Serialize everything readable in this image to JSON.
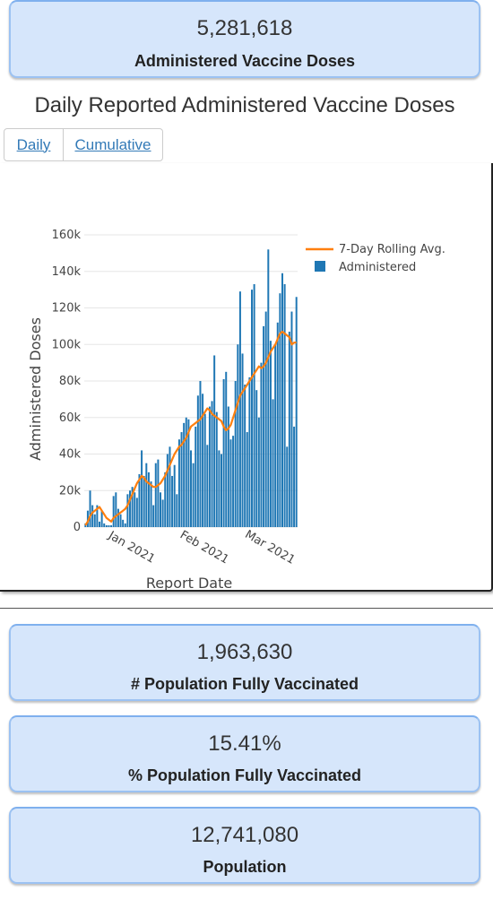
{
  "cards": {
    "administered": {
      "value": "5,281,618",
      "label": "Administered Vaccine Doses"
    },
    "fully_vaccinated": {
      "value": "1,963,630",
      "label": "# Population Fully Vaccinated"
    },
    "pct_fully_vaccinated": {
      "value": "15.41%",
      "label": "% Population Fully Vaccinated"
    },
    "population": {
      "value": "12,741,080",
      "label": "Population"
    }
  },
  "chart_title": "Daily Reported Administered Vaccine Doses",
  "tabs": {
    "daily": "Daily",
    "cumulative": "Cumulative"
  },
  "colors": {
    "bar": "#1f77b4",
    "line": "#ff7f0e",
    "card_bg": "#d6e6fb",
    "card_border": "#9cc2f2",
    "link": "#337ab7"
  },
  "chart_data": {
    "type": "bar",
    "xlabel": "Report Date",
    "ylabel": "Administered Doses",
    "ylim": [
      0,
      160000
    ],
    "y_ticks": [
      0,
      20000,
      40000,
      60000,
      80000,
      100000,
      120000,
      140000,
      160000
    ],
    "y_tick_labels": [
      "0",
      "20k",
      "40k",
      "60k",
      "80k",
      "100k",
      "120k",
      "140k",
      "160k"
    ],
    "x_tick_labels": [
      "Jan 2021",
      "Feb 2021",
      "Mar 2021"
    ],
    "x_tick_positions": [
      19,
      50,
      78
    ],
    "grid": true,
    "legend": [
      "7-Day Rolling Avg.",
      "Administered"
    ],
    "legend_position": "top-right",
    "series": [
      {
        "name": "Administered",
        "type": "bar",
        "values": [
          2000,
          9000,
          20000,
          12000,
          7000,
          12000,
          3000,
          9000,
          2000,
          1000,
          1000,
          1000,
          17000,
          19000,
          10000,
          7000,
          4000,
          2000,
          18000,
          20000,
          22000,
          19000,
          16000,
          29000,
          42000,
          28000,
          35000,
          30000,
          25000,
          12000,
          35000,
          37000,
          19000,
          15000,
          30000,
          40000,
          44000,
          28000,
          34000,
          18000,
          48000,
          52000,
          57000,
          60000,
          59000,
          42000,
          35000,
          55000,
          72000,
          80000,
          73000,
          62000,
          45000,
          66000,
          69000,
          94000,
          63000,
          42000,
          40000,
          81000,
          85000,
          66000,
          48000,
          50000,
          80000,
          100000,
          129000,
          95000,
          78000,
          52000,
          82000,
          130000,
          133000,
          75000,
          60000,
          90000,
          110000,
          118000,
          152000,
          102000,
          70000,
          100000,
          112000,
          128000,
          139000,
          133000,
          44000,
          107000,
          118000,
          55000,
          126000
        ]
      },
      {
        "name": "7-Day Rolling Avg.",
        "type": "line",
        "values": [
          1000,
          3000,
          6000,
          8000,
          9000,
          10000,
          11000,
          9000,
          7000,
          5000,
          4000,
          3000,
          5000,
          6000,
          7000,
          8000,
          9000,
          10000,
          12000,
          15000,
          18000,
          21000,
          24000,
          26000,
          28000,
          27000,
          25000,
          24000,
          23000,
          22000,
          22000,
          23000,
          24000,
          26000,
          28000,
          31000,
          34000,
          37000,
          40000,
          42000,
          44000,
          45000,
          47000,
          49000,
          52000,
          55000,
          56000,
          57000,
          58000,
          59000,
          61000,
          63000,
          65000,
          64000,
          62000,
          61000,
          60000,
          59000,
          58000,
          55000,
          53000,
          54000,
          56000,
          60000,
          64000,
          68000,
          72000,
          74000,
          76000,
          78000,
          80000,
          82000,
          84000,
          86000,
          88000,
          87000,
          88000,
          90000,
          93000,
          96000,
          98000,
          100000,
          103000,
          106000,
          107000,
          106000,
          105000,
          104000,
          100000,
          101000,
          101000
        ]
      }
    ]
  }
}
